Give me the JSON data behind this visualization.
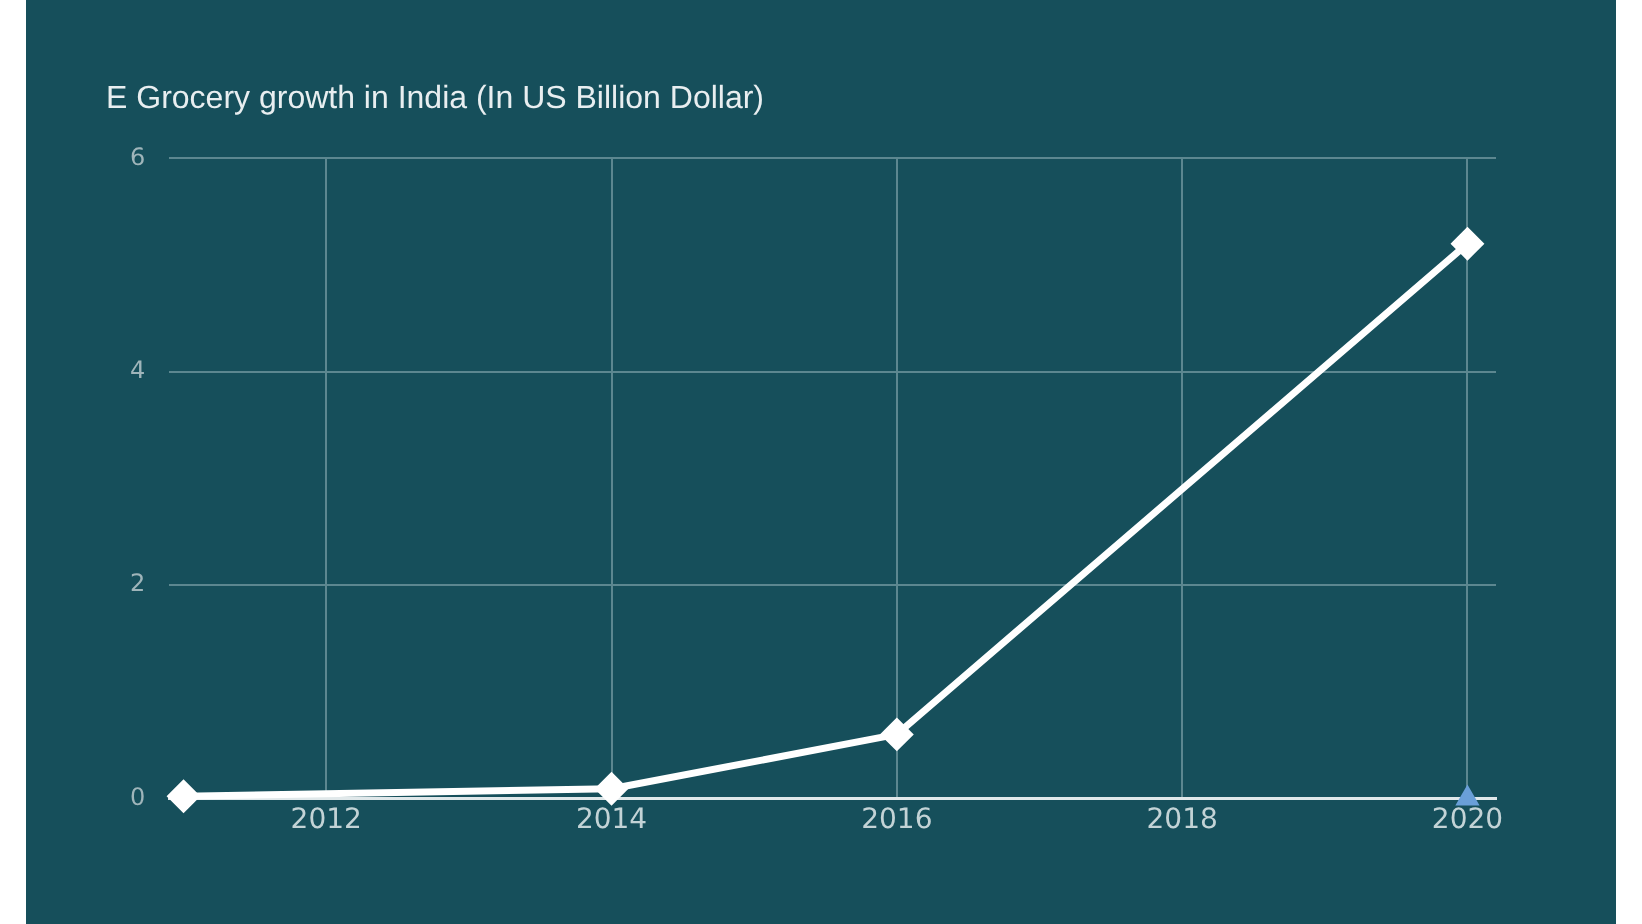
{
  "chart_data": {
    "type": "line",
    "title": "E Grocery growth in India (In US Billion Dollar)",
    "series": [
      {
        "color": "#ffffff",
        "x": [
          2011,
          2014,
          2016,
          2020
        ],
        "values": [
          0.02,
          0.09,
          0.6,
          5.2
        ],
        "marker": "diamond"
      },
      {
        "type": "scatter",
        "color": "#6a9fd8",
        "x": [
          2020
        ],
        "values": [
          0
        ],
        "marker": "triangle"
      }
    ],
    "xlim": [
      2010.9,
      2020.2
    ],
    "xticks": [
      2012,
      2014,
      2016,
      2018,
      2020
    ],
    "ylim": [
      0,
      6
    ],
    "yticks": [
      0,
      2,
      4,
      6
    ],
    "grid": true,
    "legend": false
  }
}
